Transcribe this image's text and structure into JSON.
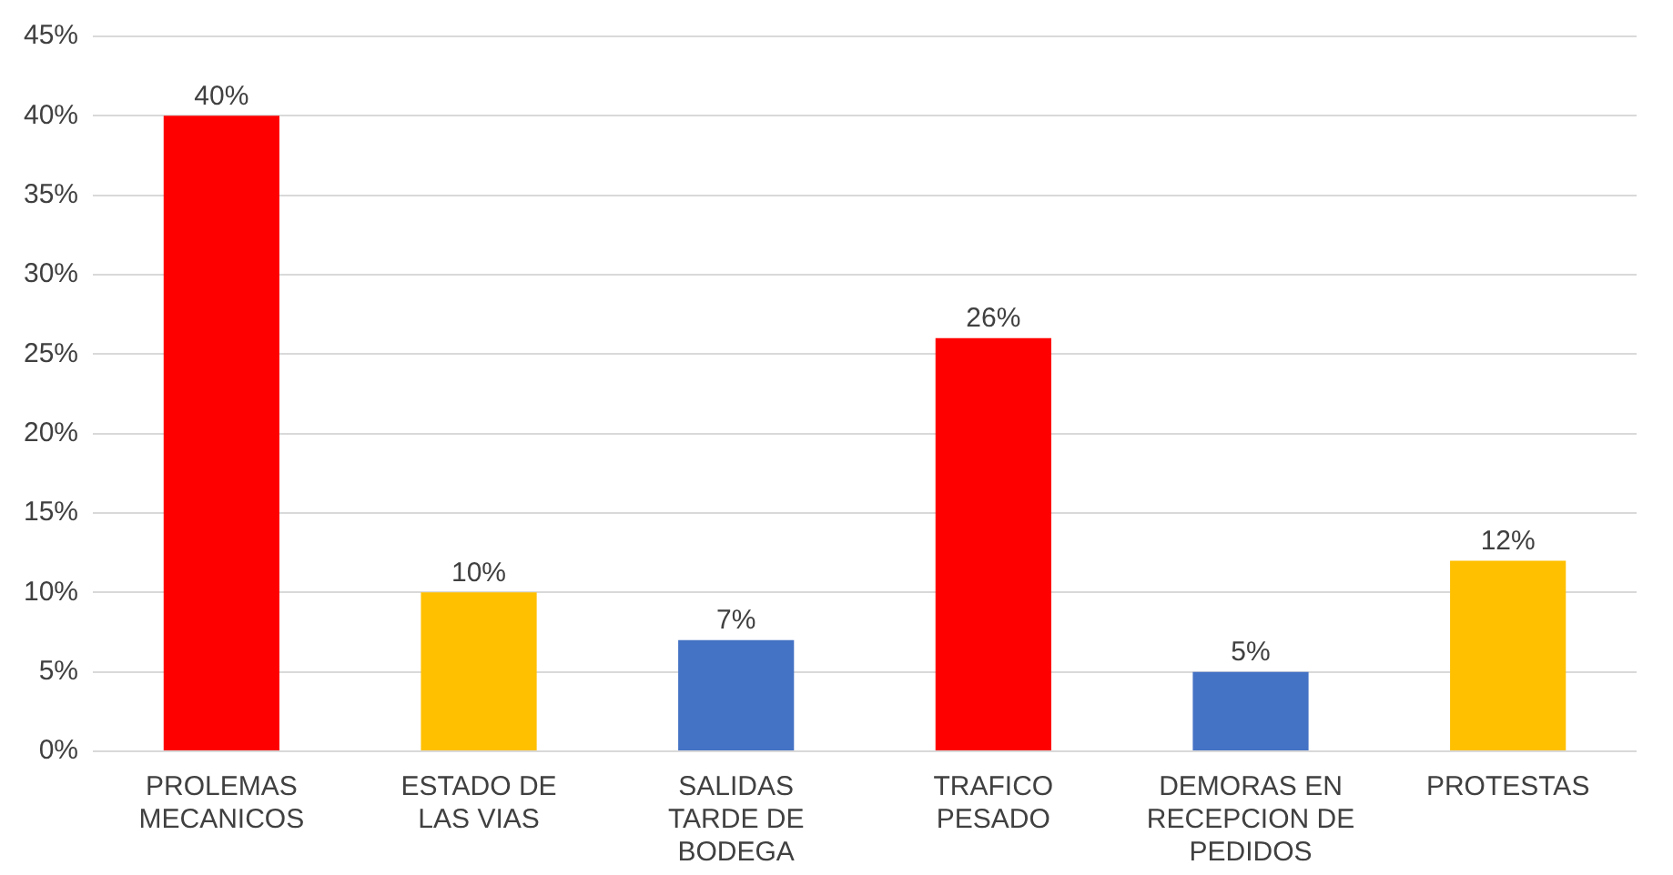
{
  "chart_data": {
    "type": "bar",
    "categories": [
      "PROLEMAS MECANICOS",
      "ESTADO DE LAS VIAS",
      "SALIDAS TARDE DE BODEGA",
      "TRAFICO PESADO",
      "DEMORAS EN RECEPCION DE PEDIDOS",
      "PROTESTAS"
    ],
    "values": [
      40,
      10,
      7,
      26,
      5,
      12
    ],
    "colors": [
      "#ff0000",
      "#ffc000",
      "#4472c4",
      "#ff0000",
      "#4472c4",
      "#ffc000"
    ],
    "value_labels": [
      "40%",
      "10%",
      "7%",
      "26%",
      "5%",
      "12%"
    ],
    "ylim": [
      0,
      45
    ],
    "yticks": [
      {
        "value": 0,
        "label": "0%"
      },
      {
        "value": 5,
        "label": "5%"
      },
      {
        "value": 10,
        "label": "10%"
      },
      {
        "value": 15,
        "label": "15%"
      },
      {
        "value": 20,
        "label": "20%"
      },
      {
        "value": 25,
        "label": "25%"
      },
      {
        "value": 30,
        "label": "30%"
      },
      {
        "value": 35,
        "label": "35%"
      },
      {
        "value": 40,
        "label": "40%"
      },
      {
        "value": 45,
        "label": "45%"
      }
    ],
    "grid": "y",
    "legend": false
  }
}
